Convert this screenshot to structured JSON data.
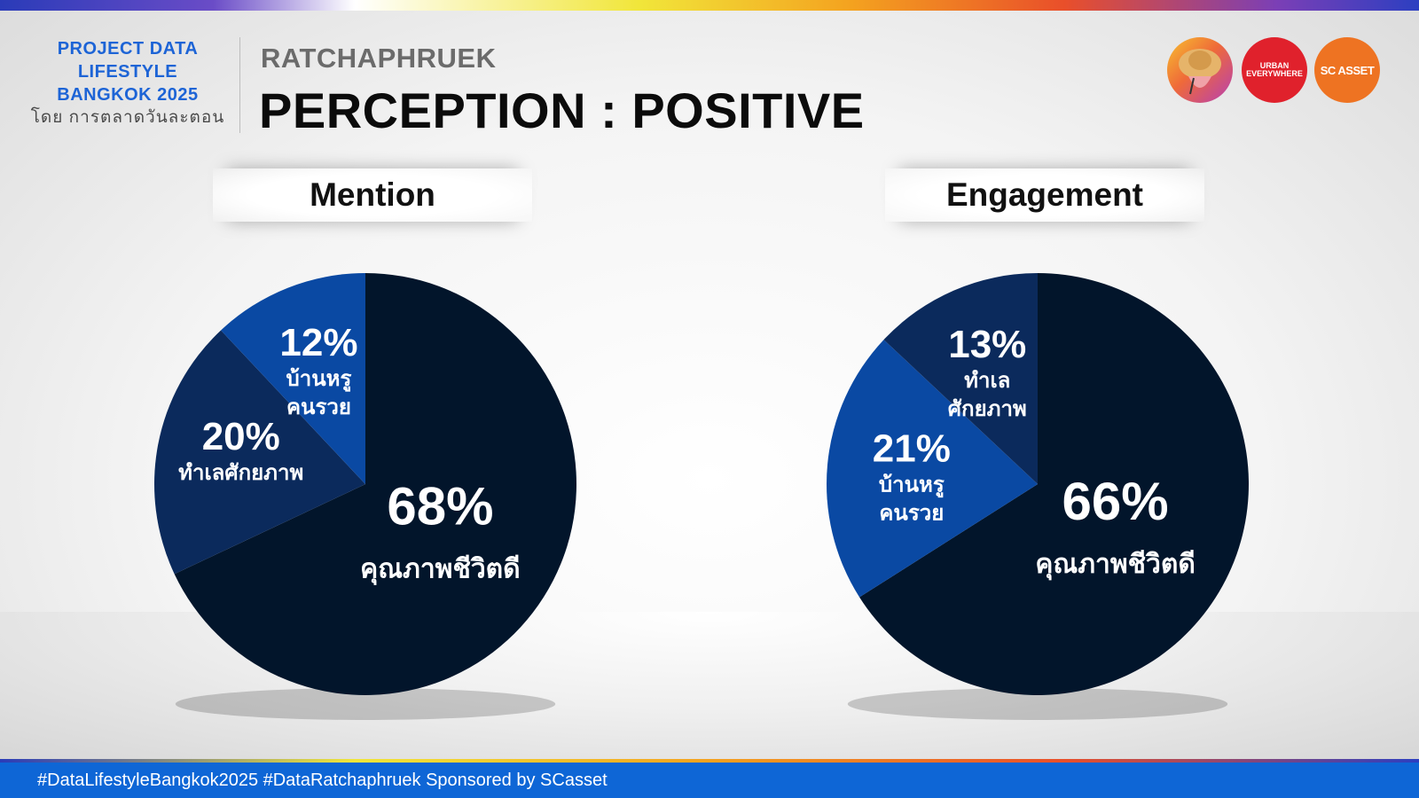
{
  "brand": {
    "line1": "PROJECT DATA",
    "line2": "LIFESTYLE",
    "line3": "BANGKOK 2025",
    "sub": "โดย การตลาดวันละตอน"
  },
  "header": {
    "kicker": "RATCHAPHRUEK",
    "title": "PERCEPTION : POSITIVE"
  },
  "logos": {
    "logo2_text_1": "URBAN",
    "logo2_text_2": "EVERYWHERE",
    "logo3_text": "SC ASSET"
  },
  "colors": {
    "slice_main": "#02152b",
    "slice_second": "#0b2a5c",
    "slice_third": "#0a49a3",
    "label": "#ffffff"
  },
  "chart_data": [
    {
      "type": "pie",
      "title": "Mention",
      "slices": [
        {
          "label": "คุณภาพชีวิตดี",
          "value": 68,
          "display": "68%",
          "color": "#02152b"
        },
        {
          "label": "ทำเลศักยภาพ",
          "value": 20,
          "display": "20%",
          "color": "#0b2a5c"
        },
        {
          "label": "บ้านหรู คนรวย",
          "value": 12,
          "display": "12%",
          "color": "#0a49a3"
        }
      ]
    },
    {
      "type": "pie",
      "title": "Engagement",
      "slices": [
        {
          "label": "คุณภาพชีวิตดี",
          "value": 66,
          "display": "66%",
          "color": "#02152b"
        },
        {
          "label": "บ้านหรู คนรวย",
          "value": 21,
          "display": "21%",
          "color": "#0a49a3"
        },
        {
          "label": "ทำเล ศักยภาพ",
          "value": 13,
          "display": "13%",
          "color": "#0b2a5c"
        }
      ]
    }
  ],
  "footer": {
    "text": "#DataLifestyleBangkok2025 #DataRatchaphruek Sponsored by SCasset"
  }
}
